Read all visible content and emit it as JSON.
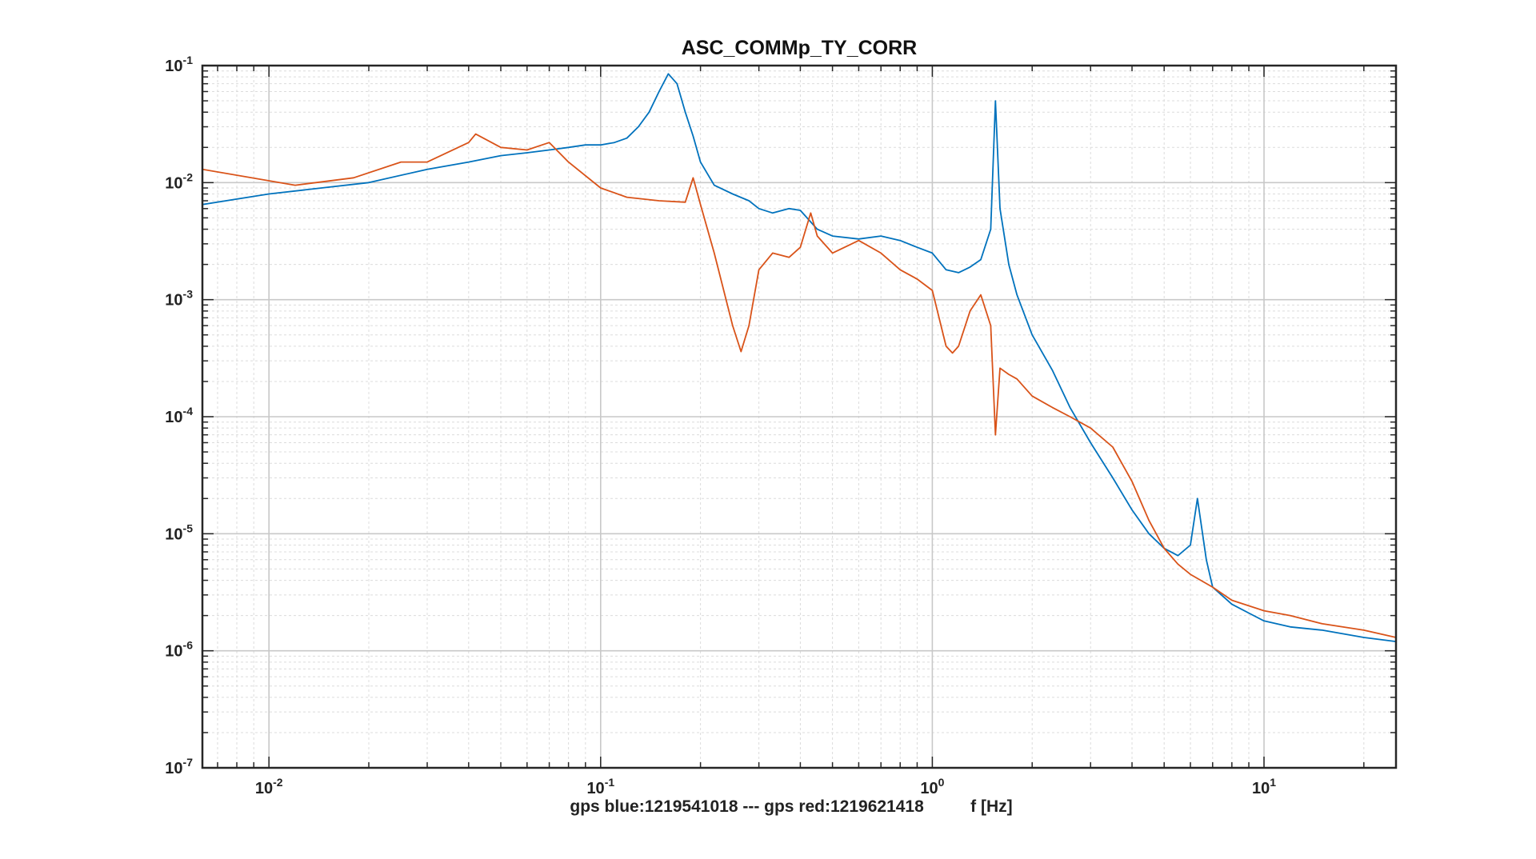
{
  "chart_data": {
    "type": "line",
    "title": "ASC_COMMp_TY_CORR",
    "xlabel": "gps blue:1219541018 --- gps red:1219621418          f [Hz]",
    "ylabel": "",
    "xscale": "log",
    "yscale": "log",
    "xlim": [
      0.0063,
      25
    ],
    "ylim": [
      1e-07,
      0.1
    ],
    "grid": true,
    "x_ticks": [
      {
        "base": "10",
        "exp": "-2",
        "value": 0.01
      },
      {
        "base": "10",
        "exp": "-1",
        "value": 0.1
      },
      {
        "base": "10",
        "exp": "0",
        "value": 1
      },
      {
        "base": "10",
        "exp": "1",
        "value": 10
      }
    ],
    "y_ticks": [
      {
        "base": "10",
        "exp": "-1",
        "value": 0.1
      },
      {
        "base": "10",
        "exp": "-2",
        "value": 0.01
      },
      {
        "base": "10",
        "exp": "-3",
        "value": 0.001
      },
      {
        "base": "10",
        "exp": "-4",
        "value": 0.0001
      },
      {
        "base": "10",
        "exp": "-5",
        "value": 1e-05
      },
      {
        "base": "10",
        "exp": "-6",
        "value": 1e-06
      },
      {
        "base": "10",
        "exp": "-7",
        "value": 1e-07
      }
    ],
    "series": [
      {
        "color": "#0072BD",
        "x": [
          0.0063,
          0.01,
          0.02,
          0.03,
          0.04,
          0.05,
          0.06,
          0.07,
          0.08,
          0.09,
          0.1,
          0.11,
          0.12,
          0.13,
          0.14,
          0.15,
          0.16,
          0.17,
          0.18,
          0.19,
          0.2,
          0.22,
          0.25,
          0.28,
          0.3,
          0.33,
          0.37,
          0.4,
          0.45,
          0.5,
          0.6,
          0.7,
          0.8,
          0.9,
          1.0,
          1.1,
          1.2,
          1.3,
          1.4,
          1.5,
          1.55,
          1.6,
          1.7,
          1.8,
          2.0,
          2.3,
          2.6,
          3.0,
          3.5,
          4.0,
          4.5,
          5.0,
          5.5,
          6.0,
          6.3,
          6.7,
          7.0,
          8.0,
          9.0,
          10.0,
          12.0,
          15.0,
          20.0,
          25.0
        ],
        "y": [
          0.0065,
          0.008,
          0.01,
          0.013,
          0.015,
          0.017,
          0.018,
          0.019,
          0.02,
          0.021,
          0.021,
          0.022,
          0.024,
          0.03,
          0.04,
          0.06,
          0.085,
          0.07,
          0.04,
          0.025,
          0.015,
          0.0095,
          0.008,
          0.007,
          0.006,
          0.0055,
          0.006,
          0.0058,
          0.004,
          0.0035,
          0.0033,
          0.0035,
          0.0032,
          0.0028,
          0.0025,
          0.0018,
          0.0017,
          0.0019,
          0.0022,
          0.004,
          0.05,
          0.006,
          0.002,
          0.0011,
          0.0005,
          0.00025,
          0.00012,
          6e-05,
          3e-05,
          1.6e-05,
          1e-05,
          7.5e-06,
          6.5e-06,
          8e-06,
          2e-05,
          6e-06,
          3.5e-06,
          2.5e-06,
          2.1e-06,
          1.8e-06,
          1.6e-06,
          1.5e-06,
          1.3e-06,
          1.2e-06
        ]
      },
      {
        "color": "#D95319",
        "x": [
          0.0063,
          0.012,
          0.018,
          0.025,
          0.03,
          0.04,
          0.042,
          0.05,
          0.06,
          0.07,
          0.08,
          0.1,
          0.12,
          0.15,
          0.18,
          0.19,
          0.2,
          0.22,
          0.25,
          0.265,
          0.28,
          0.3,
          0.33,
          0.37,
          0.4,
          0.43,
          0.45,
          0.5,
          0.6,
          0.7,
          0.8,
          0.9,
          1.0,
          1.1,
          1.15,
          1.2,
          1.3,
          1.4,
          1.5,
          1.55,
          1.6,
          1.7,
          1.8,
          2.0,
          2.3,
          2.6,
          3.0,
          3.5,
          4.0,
          4.5,
          5.0,
          5.5,
          6.0,
          7.0,
          8.0,
          10.0,
          12.0,
          15.0,
          20.0,
          25.0
        ],
        "y": [
          0.013,
          0.0095,
          0.011,
          0.015,
          0.015,
          0.022,
          0.026,
          0.02,
          0.019,
          0.022,
          0.015,
          0.009,
          0.0075,
          0.007,
          0.0068,
          0.011,
          0.0065,
          0.0025,
          0.0006,
          0.00036,
          0.0006,
          0.0018,
          0.0025,
          0.0023,
          0.0028,
          0.0055,
          0.0035,
          0.0025,
          0.0032,
          0.0025,
          0.0018,
          0.0015,
          0.0012,
          0.0004,
          0.00035,
          0.0004,
          0.0008,
          0.0011,
          0.0006,
          7e-05,
          0.00026,
          0.00023,
          0.00021,
          0.00015,
          0.00012,
          0.0001,
          8e-05,
          5.5e-05,
          2.8e-05,
          1.3e-05,
          7.5e-06,
          5.5e-06,
          4.5e-06,
          3.5e-06,
          2.7e-06,
          2.2e-06,
          2e-06,
          1.7e-06,
          1.5e-06,
          1.3e-06
        ]
      }
    ]
  }
}
